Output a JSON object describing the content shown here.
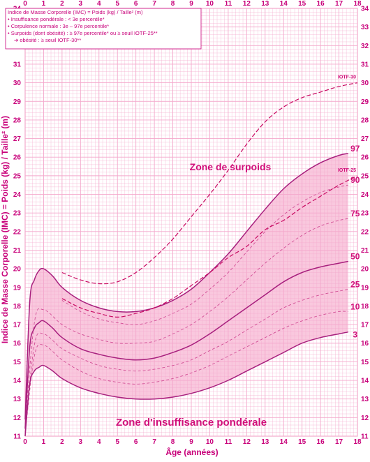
{
  "chart_data": {
    "type": "line",
    "title": "",
    "xlabel": "Âge (années)",
    "ylabel": "Indice de Masse Corporelle (IMC) = Poids (kg) / Taille² (m)",
    "xlim": [
      0,
      18
    ],
    "ylim": [
      11,
      34
    ],
    "x_ticks": [
      0,
      1,
      2,
      3,
      4,
      5,
      6,
      7,
      8,
      9,
      10,
      11,
      12,
      13,
      14,
      15,
      16,
      17,
      18
    ],
    "y_ticks": [
      11,
      12,
      13,
      14,
      15,
      16,
      17,
      18,
      19,
      20,
      21,
      22,
      23,
      24,
      25,
      26,
      27,
      28,
      29,
      30,
      31,
      32,
      33,
      34
    ],
    "grid": true,
    "legend": {
      "line1": "Indice de Masse Corporelle (IMC) = Poids (kg) / Taille² (m)",
      "line2": "• Insuffisance pondérale : < 3e percentile*",
      "line3": "• Corpulence normale : 3e – 97e percentile*",
      "line4": "• Surpoids (dont obésité) : ≥ 97e percentile* ou ≥ seuil IOTF-25**",
      "line5": "➔ obésité : ≥ seuil IOTF-30**"
    },
    "annotations": {
      "overweight_zone": "Zone de surpoids",
      "underweight_zone": "Zone d'insuffisance pondérale"
    },
    "colors": {
      "grid": "#f4a8cc",
      "axis_text": "#c8007a",
      "percentile_solid": "#a8207e",
      "percentile_dashed": "#d24f96",
      "iotf": "#c80a62",
      "band_fill": "#f9c8de",
      "label": "#d10f7a",
      "legend_border": "#c8007a"
    },
    "series": [
      {
        "name": "97",
        "style": "solid",
        "x": [
          0,
          0.25,
          0.5,
          0.75,
          1,
          1.5,
          2,
          3,
          4,
          5,
          6,
          7,
          8,
          9,
          10,
          11,
          12,
          13,
          14,
          15,
          16,
          17,
          17.5
        ],
        "y": [
          11.9,
          18.2,
          19.4,
          19.9,
          20.0,
          19.6,
          19.0,
          18.3,
          17.9,
          17.7,
          17.7,
          17.9,
          18.3,
          18.9,
          19.8,
          20.8,
          22.0,
          23.2,
          24.3,
          25.1,
          25.7,
          26.1,
          26.2
        ]
      },
      {
        "name": "90",
        "style": "dashed",
        "x": [
          2,
          3,
          4,
          5,
          6,
          7,
          8,
          9,
          10,
          11,
          12,
          13,
          14,
          15,
          16,
          17,
          17.5
        ],
        "y": [
          18.3,
          17.7,
          17.3,
          17.1,
          17.0,
          17.2,
          17.6,
          18.1,
          18.9,
          19.8,
          20.9,
          22.0,
          22.9,
          23.6,
          24.1,
          24.4,
          24.5
        ]
      },
      {
        "name": "75",
        "style": "dashed",
        "x": [
          0,
          0.5,
          1,
          2,
          3,
          4,
          5,
          6,
          7,
          8,
          9,
          10,
          11,
          12,
          13,
          14,
          15,
          16,
          17,
          17.5
        ],
        "y": [
          11.5,
          17.1,
          17.8,
          17.0,
          16.5,
          16.2,
          16.0,
          16.0,
          16.1,
          16.5,
          17.0,
          17.7,
          18.5,
          19.4,
          20.3,
          21.1,
          21.8,
          22.3,
          22.6,
          22.7
        ]
      },
      {
        "name": "50",
        "style": "solid",
        "x": [
          0,
          0.25,
          0.5,
          0.75,
          1,
          1.5,
          2,
          3,
          4,
          5,
          6,
          7,
          8,
          9,
          10,
          11,
          12,
          13,
          14,
          15,
          16,
          17,
          17.5
        ],
        "y": [
          11.4,
          15.8,
          16.8,
          17.1,
          17.2,
          16.8,
          16.3,
          15.7,
          15.4,
          15.2,
          15.1,
          15.2,
          15.5,
          15.9,
          16.5,
          17.2,
          17.9,
          18.6,
          19.3,
          19.8,
          20.1,
          20.3,
          20.4
        ]
      },
      {
        "name": "25",
        "style": "dashed",
        "x": [
          0,
          0.5,
          1,
          2,
          3,
          4,
          5,
          6,
          7,
          8,
          9,
          10,
          11,
          12,
          13,
          14,
          15,
          16,
          17,
          17.5
        ],
        "y": [
          11.2,
          15.9,
          16.5,
          15.7,
          15.2,
          14.8,
          14.6,
          14.5,
          14.6,
          14.8,
          15.1,
          15.6,
          16.1,
          16.7,
          17.3,
          17.9,
          18.3,
          18.6,
          18.8,
          18.9
        ]
      },
      {
        "name": "10",
        "style": "dashed",
        "x": [
          0,
          0.5,
          1,
          2,
          3,
          4,
          5,
          6,
          7,
          8,
          9,
          10,
          11,
          12,
          13,
          14,
          15,
          16,
          17,
          17.5
        ],
        "y": [
          11.1,
          15.3,
          15.9,
          15.1,
          14.5,
          14.1,
          13.9,
          13.8,
          13.9,
          14.1,
          14.4,
          14.8,
          15.3,
          15.8,
          16.3,
          16.8,
          17.2,
          17.5,
          17.7,
          17.7
        ]
      },
      {
        "name": "3",
        "style": "solid",
        "x": [
          0,
          0.25,
          0.5,
          0.75,
          1,
          1.5,
          2,
          3,
          4,
          5,
          6,
          7,
          8,
          9,
          10,
          11,
          12,
          13,
          14,
          15,
          16,
          17,
          17.5
        ],
        "y": [
          11.0,
          13.8,
          14.5,
          14.7,
          14.8,
          14.5,
          14.1,
          13.6,
          13.3,
          13.1,
          13.0,
          13.0,
          13.1,
          13.3,
          13.6,
          14.0,
          14.5,
          15.0,
          15.5,
          16.0,
          16.3,
          16.5,
          16.6
        ]
      },
      {
        "name": "IOTF-25",
        "style": "dashed",
        "x": [
          2,
          3,
          4,
          5,
          6,
          7,
          8,
          9,
          10,
          11,
          12,
          13,
          14,
          15,
          16,
          17,
          18
        ],
        "y": [
          18.4,
          17.9,
          17.6,
          17.4,
          17.6,
          17.9,
          18.4,
          19.1,
          19.8,
          20.6,
          21.2,
          22.1,
          22.6,
          23.3,
          23.9,
          24.5,
          25.0
        ]
      },
      {
        "name": "IOTF-30",
        "style": "dashed",
        "x": [
          2,
          3,
          4,
          5,
          6,
          7,
          8,
          9,
          10,
          11,
          12,
          13,
          14,
          15,
          16,
          17,
          18
        ],
        "y": [
          19.8,
          19.4,
          19.2,
          19.3,
          19.8,
          20.6,
          21.6,
          22.8,
          24.0,
          25.3,
          26.7,
          27.9,
          28.7,
          29.2,
          29.5,
          29.8,
          30.0
        ]
      }
    ]
  }
}
